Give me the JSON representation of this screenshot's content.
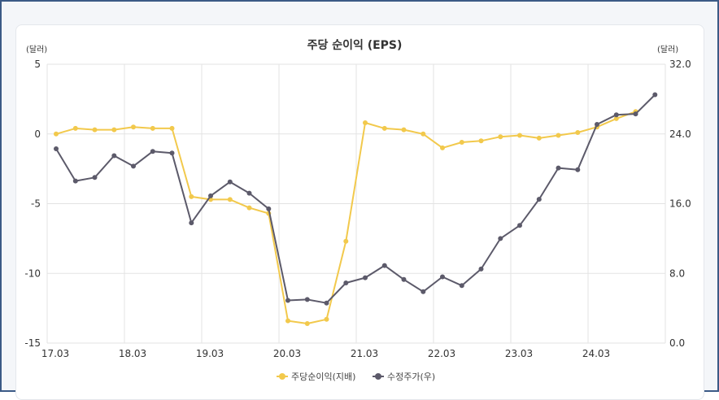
{
  "chart_data": {
    "type": "line",
    "title": "주당 순이익 (EPS)",
    "left_unit": "(달러)",
    "right_unit": "(달러)",
    "x_tick_labels": [
      "17.03",
      "18.03",
      "19.03",
      "20.03",
      "21.03",
      "22.03",
      "23.03",
      "24.03"
    ],
    "left_axis": {
      "min": -15,
      "max": 5,
      "ticks": [
        "5",
        "0",
        "-5",
        "-10",
        "-15"
      ]
    },
    "right_axis": {
      "min": 0,
      "max": 32,
      "ticks": [
        "32.0",
        "24.0",
        "16.0",
        "8.0",
        "0.0"
      ]
    },
    "grid": true,
    "legend_position": "bottom",
    "series": [
      {
        "name": "주당순이익(지배)",
        "axis": "left",
        "color": "#f2c94c",
        "values": [
          0.0,
          0.4,
          0.3,
          0.3,
          0.5,
          0.4,
          0.4,
          -4.5,
          -4.7,
          -4.7,
          -5.3,
          -5.7,
          -13.4,
          -13.6,
          -13.3,
          -7.7,
          0.8,
          0.4,
          0.3,
          0.0,
          -1.0,
          -0.6,
          -0.5,
          -0.2,
          -0.1,
          -0.3,
          -0.1,
          0.1,
          0.5,
          1.1,
          1.6
        ]
      },
      {
        "name": "수정주가(우)",
        "axis": "right",
        "color": "#5c5a6a",
        "values": [
          22.3,
          18.6,
          19.0,
          21.5,
          20.3,
          22.0,
          21.8,
          13.8,
          16.9,
          18.5,
          17.2,
          15.4,
          4.9,
          5.0,
          4.6,
          6.9,
          7.5,
          8.9,
          7.3,
          5.9,
          7.6,
          6.6,
          8.5,
          12.0,
          13.5,
          16.5,
          20.1,
          19.9,
          25.1,
          26.2,
          26.3,
          28.5
        ]
      }
    ]
  }
}
